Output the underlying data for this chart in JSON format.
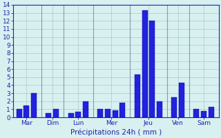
{
  "bars": [
    {
      "x": 0,
      "height": 1.0
    },
    {
      "x": 1,
      "height": 1.5
    },
    {
      "x": 2,
      "height": 3.0
    },
    {
      "x": 4,
      "height": 0.5
    },
    {
      "x": 5,
      "height": 1.0
    },
    {
      "x": 7,
      "height": 0.5
    },
    {
      "x": 8,
      "height": 0.7
    },
    {
      "x": 9,
      "height": 2.0
    },
    {
      "x": 11,
      "height": 1.0
    },
    {
      "x": 12,
      "height": 1.0
    },
    {
      "x": 13,
      "height": 0.9
    },
    {
      "x": 14,
      "height": 1.8
    },
    {
      "x": 16,
      "height": 5.3
    },
    {
      "x": 17,
      "height": 13.3
    },
    {
      "x": 18,
      "height": 12.0
    },
    {
      "x": 19,
      "height": 2.0
    },
    {
      "x": 21,
      "height": 2.5
    },
    {
      "x": 22,
      "height": 4.3
    },
    {
      "x": 24,
      "height": 1.0
    },
    {
      "x": 25,
      "height": 0.8
    },
    {
      "x": 26,
      "height": 1.3
    }
  ],
  "day_ticks": {
    "Mar": 1.0,
    "Dim": 4.5,
    "Lun": 8.0,
    "Mer": 12.5,
    "Jeu": 17.5,
    "Ven": 21.5,
    "Sam": 25.0
  },
  "day_separators": [
    3.0,
    6.0,
    10.0,
    15.0,
    20.0,
    23.0
  ],
  "bar_color": "#2222dd",
  "bar_edge_color": "#0000aa",
  "bg_color": "#d8f0f0",
  "grid_color": "#aac8c8",
  "axis_color": "#2222aa",
  "sep_color": "#8899aa",
  "ylabel_values": [
    0,
    1,
    2,
    3,
    4,
    5,
    6,
    7,
    8,
    9,
    10,
    11,
    12,
    13,
    14
  ],
  "ylim": [
    0,
    14
  ],
  "xlim": [
    -0.8,
    27.0
  ],
  "xlabel": "Précipitations 24h ( mm )",
  "label_fontsize": 7.5,
  "tick_fontsize": 6.5,
  "bar_width": 0.75
}
